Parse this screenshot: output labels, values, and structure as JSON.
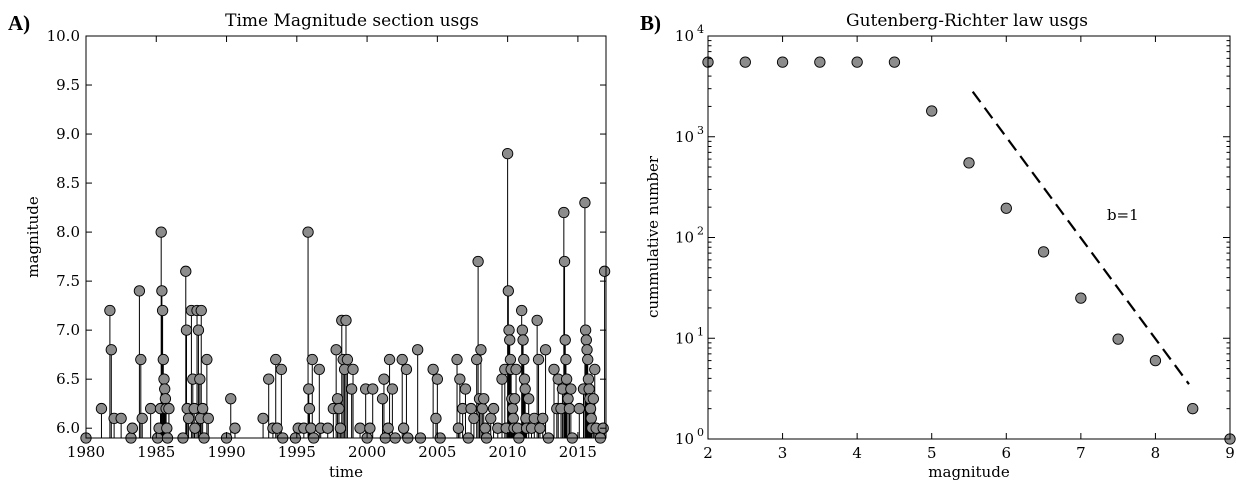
{
  "chart_data": [
    {
      "type": "scatter",
      "panel_label": "A)",
      "title": "Time Magnitude section usgs",
      "xlabel": "time",
      "ylabel": "magnitude",
      "xlim": [
        1980,
        2017
      ],
      "ylim": [
        5.9,
        10.0
      ],
      "xticks": [
        "1980",
        "1985",
        "1990",
        "1995",
        "2000",
        "2005",
        "2010",
        "2015"
      ],
      "yticks": [
        "6.0",
        "6.5",
        "7.0",
        "7.5",
        "8.0",
        "8.5",
        "9.0",
        "9.5",
        "10.0"
      ],
      "style": "stem",
      "marker_color": "#8c8c8c",
      "grid": false,
      "points": [
        [
          1980.0,
          5.9
        ],
        [
          1981.1,
          6.2
        ],
        [
          1981.7,
          7.2
        ],
        [
          1981.8,
          6.8
        ],
        [
          1982.0,
          6.1
        ],
        [
          1982.5,
          6.1
        ],
        [
          1983.2,
          5.9
        ],
        [
          1983.3,
          6.0
        ],
        [
          1983.8,
          7.4
        ],
        [
          1983.9,
          6.7
        ],
        [
          1984.0,
          6.1
        ],
        [
          1984.6,
          6.2
        ],
        [
          1985.1,
          5.9
        ],
        [
          1985.2,
          6.0
        ],
        [
          1985.3,
          6.2
        ],
        [
          1985.35,
          8.0
        ],
        [
          1985.4,
          7.4
        ],
        [
          1985.45,
          7.2
        ],
        [
          1985.5,
          6.7
        ],
        [
          1985.55,
          6.5
        ],
        [
          1985.6,
          6.4
        ],
        [
          1985.65,
          6.3
        ],
        [
          1985.7,
          6.2
        ],
        [
          1985.75,
          6.0
        ],
        [
          1985.8,
          5.9
        ],
        [
          1985.9,
          6.2
        ],
        [
          1986.9,
          5.9
        ],
        [
          1987.1,
          7.6
        ],
        [
          1987.15,
          7.0
        ],
        [
          1987.2,
          6.2
        ],
        [
          1987.3,
          6.1
        ],
        [
          1987.5,
          7.2
        ],
        [
          1987.6,
          6.5
        ],
        [
          1987.7,
          6.2
        ],
        [
          1987.75,
          6.0
        ],
        [
          1987.9,
          7.2
        ],
        [
          1988.0,
          7.0
        ],
        [
          1988.1,
          6.5
        ],
        [
          1988.15,
          6.1
        ],
        [
          1988.2,
          7.2
        ],
        [
          1988.3,
          6.2
        ],
        [
          1988.4,
          5.9
        ],
        [
          1988.6,
          6.7
        ],
        [
          1988.7,
          6.1
        ],
        [
          1990.0,
          5.9
        ],
        [
          1990.3,
          6.3
        ],
        [
          1990.6,
          6.0
        ],
        [
          1992.6,
          6.1
        ],
        [
          1993.0,
          6.5
        ],
        [
          1993.3,
          6.0
        ],
        [
          1993.5,
          6.7
        ],
        [
          1993.6,
          6.0
        ],
        [
          1993.9,
          6.6
        ],
        [
          1994.0,
          5.9
        ],
        [
          1994.9,
          5.9
        ],
        [
          1995.1,
          6.0
        ],
        [
          1995.5,
          6.0
        ],
        [
          1995.8,
          8.0
        ],
        [
          1995.85,
          6.4
        ],
        [
          1995.9,
          6.2
        ],
        [
          1996.0,
          6.0
        ],
        [
          1996.1,
          6.7
        ],
        [
          1996.2,
          5.9
        ],
        [
          1996.6,
          6.6
        ],
        [
          1996.7,
          6.0
        ],
        [
          1997.2,
          6.0
        ],
        [
          1997.6,
          6.2
        ],
        [
          1997.8,
          6.8
        ],
        [
          1997.9,
          6.3
        ],
        [
          1998.0,
          6.2
        ],
        [
          1998.1,
          6.0
        ],
        [
          1998.2,
          7.1
        ],
        [
          1998.3,
          6.7
        ],
        [
          1998.4,
          6.6
        ],
        [
          1998.5,
          7.1
        ],
        [
          1998.6,
          6.7
        ],
        [
          1998.9,
          6.4
        ],
        [
          1999.0,
          6.6
        ],
        [
          1999.5,
          6.0
        ],
        [
          1999.9,
          6.4
        ],
        [
          2000.0,
          5.9
        ],
        [
          2000.2,
          6.0
        ],
        [
          2000.4,
          6.4
        ],
        [
          2001.1,
          6.3
        ],
        [
          2001.2,
          6.5
        ],
        [
          2001.3,
          5.9
        ],
        [
          2001.5,
          6.0
        ],
        [
          2001.6,
          6.7
        ],
        [
          2001.8,
          6.4
        ],
        [
          2002.0,
          5.9
        ],
        [
          2002.5,
          6.7
        ],
        [
          2002.6,
          6.0
        ],
        [
          2002.8,
          6.6
        ],
        [
          2002.9,
          5.9
        ],
        [
          2003.6,
          6.8
        ],
        [
          2003.8,
          5.9
        ],
        [
          2004.7,
          6.6
        ],
        [
          2004.9,
          6.1
        ],
        [
          2005.0,
          6.5
        ],
        [
          2005.2,
          5.9
        ],
        [
          2006.4,
          6.7
        ],
        [
          2006.5,
          6.0
        ],
        [
          2006.6,
          6.5
        ],
        [
          2006.8,
          6.2
        ],
        [
          2007.0,
          6.4
        ],
        [
          2007.2,
          5.9
        ],
        [
          2007.4,
          6.2
        ],
        [
          2007.6,
          6.1
        ],
        [
          2007.8,
          6.7
        ],
        [
          2007.9,
          7.7
        ],
        [
          2008.0,
          6.3
        ],
        [
          2008.1,
          6.8
        ],
        [
          2008.2,
          6.2
        ],
        [
          2008.3,
          6.3
        ],
        [
          2008.4,
          6.0
        ],
        [
          2008.5,
          5.9
        ],
        [
          2008.8,
          6.1
        ],
        [
          2009.0,
          6.2
        ],
        [
          2009.3,
          6.0
        ],
        [
          2009.6,
          6.5
        ],
        [
          2009.8,
          6.6
        ],
        [
          2009.9,
          6.0
        ],
        [
          2010.0,
          8.8
        ],
        [
          2010.05,
          7.4
        ],
        [
          2010.1,
          7.0
        ],
        [
          2010.15,
          6.9
        ],
        [
          2010.2,
          6.7
        ],
        [
          2010.25,
          6.6
        ],
        [
          2010.3,
          6.3
        ],
        [
          2010.35,
          6.2
        ],
        [
          2010.4,
          6.1
        ],
        [
          2010.45,
          6.0
        ],
        [
          2010.5,
          6.3
        ],
        [
          2010.6,
          6.6
        ],
        [
          2010.7,
          6.0
        ],
        [
          2010.8,
          5.9
        ],
        [
          2011.0,
          7.2
        ],
        [
          2011.05,
          7.0
        ],
        [
          2011.1,
          6.9
        ],
        [
          2011.15,
          6.7
        ],
        [
          2011.2,
          6.5
        ],
        [
          2011.25,
          6.4
        ],
        [
          2011.3,
          6.1
        ],
        [
          2011.35,
          6.0
        ],
        [
          2011.5,
          6.3
        ],
        [
          2011.7,
          6.0
        ],
        [
          2011.9,
          6.1
        ],
        [
          2012.1,
          7.1
        ],
        [
          2012.2,
          6.7
        ],
        [
          2012.3,
          6.0
        ],
        [
          2012.5,
          6.1
        ],
        [
          2012.7,
          6.8
        ],
        [
          2012.9,
          5.9
        ],
        [
          2013.3,
          6.6
        ],
        [
          2013.5,
          6.2
        ],
        [
          2013.6,
          6.5
        ],
        [
          2013.8,
          6.2
        ],
        [
          2013.9,
          6.4
        ],
        [
          2014.0,
          8.2
        ],
        [
          2014.05,
          7.7
        ],
        [
          2014.1,
          6.9
        ],
        [
          2014.15,
          6.7
        ],
        [
          2014.2,
          6.5
        ],
        [
          2014.3,
          6.3
        ],
        [
          2014.4,
          6.2
        ],
        [
          2014.5,
          6.4
        ],
        [
          2014.6,
          5.9
        ],
        [
          2015.1,
          6.2
        ],
        [
          2015.4,
          6.4
        ],
        [
          2015.5,
          8.3
        ],
        [
          2015.55,
          7.0
        ],
        [
          2015.6,
          6.9
        ],
        [
          2015.65,
          6.8
        ],
        [
          2015.7,
          6.7
        ],
        [
          2015.75,
          6.5
        ],
        [
          2015.8,
          6.4
        ],
        [
          2015.85,
          6.3
        ],
        [
          2015.9,
          6.2
        ],
        [
          2015.95,
          6.1
        ],
        [
          2016.0,
          6.0
        ],
        [
          2016.1,
          6.3
        ],
        [
          2016.2,
          6.6
        ],
        [
          2016.3,
          6.0
        ],
        [
          2016.6,
          5.9
        ],
        [
          2016.8,
          6.0
        ],
        [
          2016.9,
          7.6
        ]
      ]
    },
    {
      "type": "scatter",
      "panel_label": "B)",
      "title": "Gutenberg-Richter law usgs",
      "xlabel": "magnitude",
      "ylabel": "cummulative number",
      "xlim": [
        2,
        9
      ],
      "ylim": [
        1,
        10000
      ],
      "yscale": "log",
      "xticks": [
        "2",
        "3",
        "4",
        "5",
        "6",
        "7",
        "8",
        "9"
      ],
      "yticks": [
        {
          "base": "10",
          "exp": "0"
        },
        {
          "base": "10",
          "exp": "1"
        },
        {
          "base": "10",
          "exp": "2"
        },
        {
          "base": "10",
          "exp": "3"
        },
        {
          "base": "10",
          "exp": "4"
        }
      ],
      "marker_color": "#8c8c8c",
      "grid": false,
      "x": [
        2.0,
        2.5,
        3.0,
        3.5,
        4.0,
        4.5,
        5.0,
        5.5,
        6.0,
        6.5,
        7.0,
        7.5,
        8.0,
        8.5,
        9.0
      ],
      "y": [
        5500,
        5500,
        5500,
        5500,
        5500,
        5500,
        1800,
        550,
        195,
        72,
        25,
        9.8,
        6,
        2,
        1
      ],
      "fit_line": {
        "style": "dashed",
        "label": "b=1",
        "x": [
          5.55,
          8.45
        ],
        "y": [
          2800,
          3.5
        ]
      },
      "annotation": {
        "text": "b=1",
        "x": 7.35,
        "y": 150
      }
    }
  ]
}
